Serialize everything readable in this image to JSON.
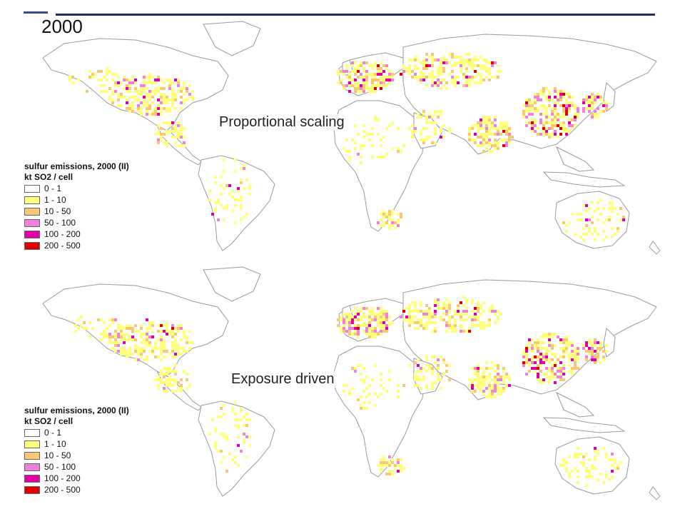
{
  "slide": {
    "year_label": "2000",
    "rule_color": "#1f2a6b"
  },
  "maps": [
    {
      "label": "Proportional scaling",
      "legend": {
        "title": "sulfur emissions, 2000 (II)",
        "unit": "kt SO2 / cell",
        "classes": [
          {
            "range": "0 - 1",
            "color": "#ffffff"
          },
          {
            "range": "1 - 10",
            "color": "#ffff80"
          },
          {
            "range": "10 - 50",
            "color": "#f8c878"
          },
          {
            "range": "50 - 100",
            "color": "#ee82d8"
          },
          {
            "range": "100 - 200",
            "color": "#e000a8"
          },
          {
            "range": "200 - 500",
            "color": "#e00000"
          }
        ]
      }
    },
    {
      "label": "Exposure driven",
      "legend": {
        "title": "sulfur emissions, 2000 (II)",
        "unit": "kt SO2 / cell",
        "classes": [
          {
            "range": "0 - 1",
            "color": "#ffffff"
          },
          {
            "range": "1 - 10",
            "color": "#ffff80"
          },
          {
            "range": "10 - 50",
            "color": "#f8c878"
          },
          {
            "range": "50 - 100",
            "color": "#ee82d8"
          },
          {
            "range": "100 - 200",
            "color": "#e000a8"
          },
          {
            "range": "200 - 500",
            "color": "#e00000"
          }
        ]
      }
    }
  ]
}
